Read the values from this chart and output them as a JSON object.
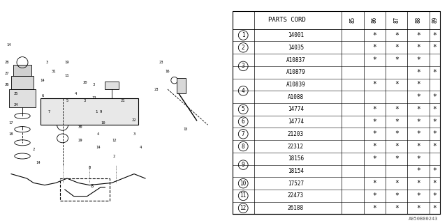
{
  "title": "",
  "watermark": "A050B00243",
  "table": {
    "headers": [
      "PARTS CORD",
      "85",
      "86",
      "87",
      "88",
      "89"
    ],
    "rows": [
      {
        "num": 1,
        "part": "14001",
        "cols": [
          false,
          true,
          true,
          true,
          true
        ]
      },
      {
        "num": 2,
        "part": "14035",
        "cols": [
          false,
          true,
          true,
          true,
          true
        ]
      },
      {
        "num": 3,
        "part": "A10837",
        "cols": [
          false,
          true,
          true,
          true,
          false
        ]
      },
      {
        "num": 3,
        "part": "A10879",
        "cols": [
          false,
          false,
          false,
          true,
          true
        ]
      },
      {
        "num": 4,
        "part": "A10839",
        "cols": [
          false,
          true,
          true,
          true,
          false
        ]
      },
      {
        "num": 4,
        "part": "A1088",
        "cols": [
          false,
          false,
          false,
          true,
          true
        ]
      },
      {
        "num": 5,
        "part": "14774",
        "cols": [
          false,
          true,
          true,
          true,
          true
        ]
      },
      {
        "num": 6,
        "part": "14774",
        "cols": [
          false,
          true,
          true,
          true,
          true
        ]
      },
      {
        "num": 7,
        "part": "21203",
        "cols": [
          false,
          true,
          true,
          true,
          true
        ]
      },
      {
        "num": 8,
        "part": "22312",
        "cols": [
          false,
          true,
          true,
          true,
          true
        ]
      },
      {
        "num": 9,
        "part": "18156",
        "cols": [
          false,
          true,
          true,
          true,
          false
        ]
      },
      {
        "num": 9,
        "part": "18154",
        "cols": [
          false,
          false,
          false,
          true,
          true
        ]
      },
      {
        "num": 10,
        "part": "17527",
        "cols": [
          false,
          true,
          true,
          true,
          true
        ]
      },
      {
        "num": 11,
        "part": "22473",
        "cols": [
          false,
          true,
          true,
          true,
          true
        ]
      },
      {
        "num": 12,
        "part": "26188",
        "cols": [
          false,
          true,
          true,
          true,
          true
        ]
      }
    ]
  },
  "bg_color": "#ffffff",
  "line_color": "#000000",
  "text_color": "#000000"
}
